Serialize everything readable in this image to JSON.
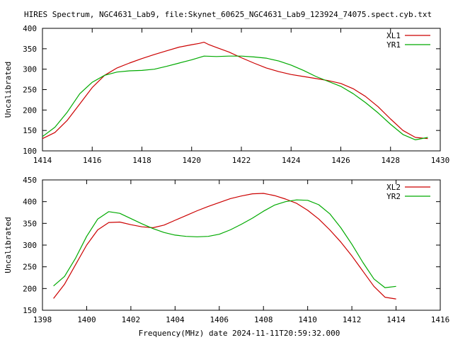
{
  "page": {
    "title": "HIRES Spectrum, NGC4631_Lab9, file:Skynet_60625_NGC4631_Lab9_123924_74075.spect.cyb.txt",
    "xlabel": "Frequency(MHz) date 2024-11-11T20:59:32.000"
  },
  "colors": {
    "red": "#cc0000",
    "green": "#00aa00",
    "axis": "#000000"
  },
  "chart_data": [
    {
      "type": "line",
      "ylabel": "Uncalibrated",
      "xlim": [
        1414,
        1430
      ],
      "ylim": [
        100,
        400
      ],
      "xticks": [
        1414,
        1416,
        1418,
        1420,
        1422,
        1424,
        1426,
        1428,
        1430
      ],
      "yticks": [
        100,
        150,
        200,
        250,
        300,
        350,
        400
      ],
      "grid": false,
      "legend": "top-right",
      "series": [
        {
          "name": "XL1",
          "color": "#cc0000",
          "x": [
            1414.0,
            1414.5,
            1415.0,
            1415.5,
            1416.0,
            1416.5,
            1417.0,
            1417.5,
            1418.0,
            1418.5,
            1419.0,
            1419.5,
            1420.0,
            1420.3,
            1420.5,
            1420.7,
            1421.0,
            1421.5,
            1422.0,
            1422.5,
            1423.0,
            1423.5,
            1424.0,
            1424.5,
            1425.0,
            1425.5,
            1426.0,
            1426.5,
            1427.0,
            1427.5,
            1428.0,
            1428.5,
            1429.0,
            1429.5
          ],
          "values": [
            130,
            145,
            175,
            215,
            255,
            285,
            303,
            315,
            326,
            336,
            345,
            354,
            360,
            363,
            366,
            360,
            353,
            342,
            328,
            315,
            303,
            294,
            287,
            282,
            277,
            272,
            265,
            252,
            233,
            208,
            178,
            150,
            133,
            130
          ]
        },
        {
          "name": "YR1",
          "color": "#00aa00",
          "x": [
            1414.0,
            1414.5,
            1415.0,
            1415.5,
            1416.0,
            1416.5,
            1417.0,
            1417.5,
            1418.0,
            1418.5,
            1419.0,
            1419.5,
            1420.0,
            1420.5,
            1421.0,
            1421.5,
            1422.0,
            1422.5,
            1423.0,
            1423.5,
            1424.0,
            1424.5,
            1425.0,
            1425.5,
            1426.0,
            1426.5,
            1427.0,
            1427.5,
            1428.0,
            1428.5,
            1429.0,
            1429.5
          ],
          "values": [
            135,
            158,
            195,
            240,
            268,
            285,
            293,
            296,
            297,
            300,
            307,
            315,
            323,
            332,
            331,
            332,
            332,
            330,
            327,
            320,
            310,
            297,
            282,
            270,
            258,
            240,
            218,
            193,
            165,
            140,
            127,
            133
          ]
        }
      ]
    },
    {
      "type": "line",
      "ylabel": "Uncalibrated",
      "xlim": [
        1398,
        1416
      ],
      "ylim": [
        150,
        450
      ],
      "xticks": [
        1398,
        1400,
        1402,
        1404,
        1406,
        1408,
        1410,
        1412,
        1414,
        1416
      ],
      "yticks": [
        150,
        200,
        250,
        300,
        350,
        400,
        450
      ],
      "grid": false,
      "legend": "top-right",
      "series": [
        {
          "name": "XL2",
          "color": "#cc0000",
          "x": [
            1398.5,
            1399.0,
            1399.5,
            1400.0,
            1400.5,
            1401.0,
            1401.5,
            1402.0,
            1402.5,
            1403.0,
            1403.5,
            1404.0,
            1404.5,
            1405.0,
            1405.5,
            1406.0,
            1406.5,
            1407.0,
            1407.5,
            1408.0,
            1408.5,
            1409.0,
            1409.5,
            1410.0,
            1410.5,
            1411.0,
            1411.5,
            1412.0,
            1412.5,
            1413.0,
            1413.5,
            1414.0
          ],
          "values": [
            177,
            210,
            255,
            300,
            335,
            352,
            353,
            347,
            342,
            340,
            346,
            357,
            368,
            379,
            389,
            398,
            407,
            413,
            418,
            419,
            414,
            406,
            396,
            380,
            360,
            335,
            307,
            275,
            240,
            205,
            180,
            176
          ]
        },
        {
          "name": "YR2",
          "color": "#00aa00",
          "x": [
            1398.5,
            1399.0,
            1399.5,
            1400.0,
            1400.5,
            1401.0,
            1401.5,
            1402.0,
            1402.5,
            1403.0,
            1403.5,
            1404.0,
            1404.5,
            1405.0,
            1405.5,
            1406.0,
            1406.5,
            1407.0,
            1407.5,
            1408.0,
            1408.5,
            1409.0,
            1409.5,
            1410.0,
            1410.5,
            1411.0,
            1411.5,
            1412.0,
            1412.5,
            1413.0,
            1413.5,
            1414.0
          ],
          "values": [
            206,
            228,
            270,
            320,
            360,
            377,
            373,
            361,
            349,
            338,
            329,
            323,
            320,
            319,
            320,
            325,
            335,
            348,
            362,
            378,
            392,
            400,
            404,
            403,
            393,
            372,
            340,
            302,
            260,
            222,
            202,
            205
          ]
        }
      ]
    }
  ]
}
